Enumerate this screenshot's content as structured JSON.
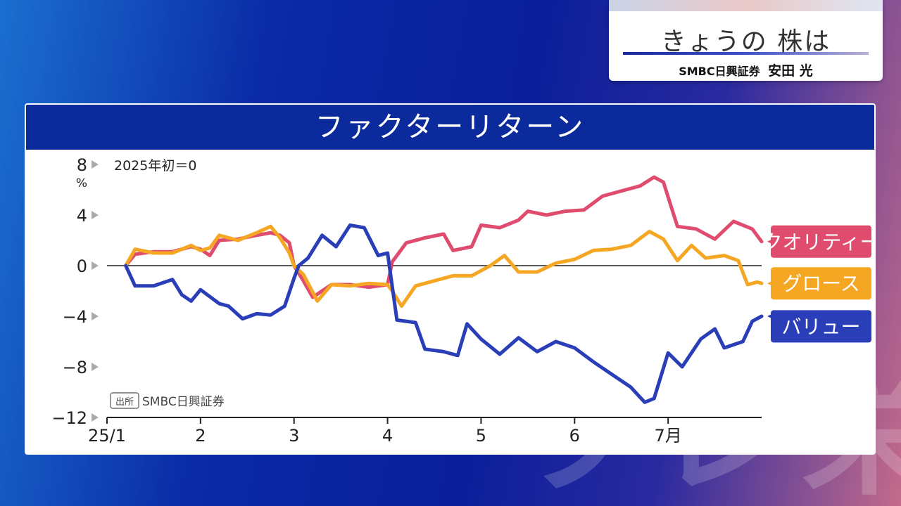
{
  "background": {
    "watermark_text": "ワレ栄"
  },
  "header": {
    "title": "きょうの 株は",
    "subtitle_org": "SMBC日興証券",
    "subtitle_person": "安田 光"
  },
  "colors": {
    "quality": "#e04c6e",
    "growth": "#f5a623",
    "value": "#2a3eb8",
    "panel_header": "#0b2a9c"
  },
  "chart_data": {
    "type": "line",
    "title": "ファクターリターン",
    "note": "2025年初＝0",
    "y_unit": "%",
    "source_badge": "出所",
    "source": "SMBC日興証券",
    "ylim": [
      -12,
      8
    ],
    "yticks": [
      {
        "value": 8,
        "label": "8"
      },
      {
        "value": 4,
        "label": "4"
      },
      {
        "value": 0,
        "label": "0"
      },
      {
        "value": -4,
        "label": "−4"
      },
      {
        "value": -8,
        "label": "−8"
      },
      {
        "value": -12,
        "label": "−12"
      }
    ],
    "xlim": [
      0,
      7
    ],
    "xticks": [
      {
        "value": 0,
        "label": "25/1"
      },
      {
        "value": 1,
        "label": "2"
      },
      {
        "value": 2,
        "label": "3"
      },
      {
        "value": 3,
        "label": "4"
      },
      {
        "value": 4,
        "label": "5"
      },
      {
        "value": 5,
        "label": "6"
      },
      {
        "value": 6,
        "label": "7月"
      }
    ],
    "series": [
      {
        "name": "クオリティー",
        "key": "quality",
        "points": [
          [
            0.2,
            0
          ],
          [
            0.3,
            0.9
          ],
          [
            0.5,
            1.1
          ],
          [
            0.7,
            1.1
          ],
          [
            0.9,
            1.5
          ],
          [
            1.0,
            1.3
          ],
          [
            1.1,
            0.8
          ],
          [
            1.2,
            2.0
          ],
          [
            1.4,
            2.1
          ],
          [
            1.6,
            2.4
          ],
          [
            1.75,
            2.6
          ],
          [
            1.85,
            2.4
          ],
          [
            1.95,
            1.8
          ],
          [
            2.0,
            0
          ],
          [
            2.1,
            -1.2
          ],
          [
            2.2,
            -2.5
          ],
          [
            2.4,
            -1.5
          ],
          [
            2.6,
            -1.5
          ],
          [
            2.8,
            -1.7
          ],
          [
            3.0,
            -1.5
          ],
          [
            3.05,
            0.3
          ],
          [
            3.2,
            1.8
          ],
          [
            3.4,
            2.2
          ],
          [
            3.6,
            2.5
          ],
          [
            3.7,
            1.2
          ],
          [
            3.9,
            1.5
          ],
          [
            4.0,
            3.2
          ],
          [
            4.2,
            3.0
          ],
          [
            4.4,
            3.6
          ],
          [
            4.5,
            4.3
          ],
          [
            4.7,
            4.0
          ],
          [
            4.9,
            4.3
          ],
          [
            5.1,
            4.4
          ],
          [
            5.3,
            5.5
          ],
          [
            5.5,
            5.9
          ],
          [
            5.7,
            6.3
          ],
          [
            5.85,
            7.0
          ],
          [
            5.95,
            6.6
          ],
          [
            6.1,
            3.1
          ],
          [
            6.3,
            2.9
          ],
          [
            6.5,
            2.1
          ],
          [
            6.7,
            3.5
          ],
          [
            6.9,
            2.9
          ],
          [
            7.0,
            1.9
          ]
        ]
      },
      {
        "name": "グロース",
        "key": "growth",
        "points": [
          [
            0.2,
            0
          ],
          [
            0.3,
            1.3
          ],
          [
            0.5,
            1.0
          ],
          [
            0.7,
            1.0
          ],
          [
            0.9,
            1.6
          ],
          [
            1.0,
            1.2
          ],
          [
            1.1,
            1.4
          ],
          [
            1.2,
            2.4
          ],
          [
            1.4,
            2.0
          ],
          [
            1.6,
            2.6
          ],
          [
            1.75,
            3.1
          ],
          [
            1.85,
            2.2
          ],
          [
            1.95,
            1.0
          ],
          [
            2.0,
            0
          ],
          [
            2.1,
            -0.7
          ],
          [
            2.25,
            -2.8
          ],
          [
            2.4,
            -1.5
          ],
          [
            2.6,
            -1.6
          ],
          [
            2.8,
            -1.4
          ],
          [
            3.0,
            -1.5
          ],
          [
            3.05,
            -2.0
          ],
          [
            3.15,
            -3.2
          ],
          [
            3.3,
            -1.6
          ],
          [
            3.5,
            -1.2
          ],
          [
            3.7,
            -0.8
          ],
          [
            3.9,
            -0.8
          ],
          [
            4.1,
            0
          ],
          [
            4.25,
            0.8
          ],
          [
            4.4,
            -0.5
          ],
          [
            4.6,
            -0.5
          ],
          [
            4.8,
            0.2
          ],
          [
            5.0,
            0.5
          ],
          [
            5.2,
            1.2
          ],
          [
            5.4,
            1.3
          ],
          [
            5.6,
            1.6
          ],
          [
            5.8,
            2.7
          ],
          [
            5.95,
            2.1
          ],
          [
            6.1,
            0.4
          ],
          [
            6.25,
            1.6
          ],
          [
            6.4,
            0.6
          ],
          [
            6.6,
            0.8
          ],
          [
            6.75,
            0.4
          ],
          [
            6.85,
            -1.5
          ],
          [
            6.95,
            -1.3
          ],
          [
            7.0,
            -1.4
          ]
        ]
      },
      {
        "name": "バリュー",
        "key": "value",
        "points": [
          [
            0.2,
            0
          ],
          [
            0.3,
            -1.6
          ],
          [
            0.5,
            -1.6
          ],
          [
            0.7,
            -1.1
          ],
          [
            0.8,
            -2.3
          ],
          [
            0.9,
            -2.8
          ],
          [
            1.0,
            -1.9
          ],
          [
            1.2,
            -3.0
          ],
          [
            1.3,
            -3.2
          ],
          [
            1.45,
            -4.2
          ],
          [
            1.6,
            -3.8
          ],
          [
            1.75,
            -3.9
          ],
          [
            1.9,
            -3.2
          ],
          [
            2.0,
            -1.0
          ],
          [
            2.05,
            0
          ],
          [
            2.15,
            0.6
          ],
          [
            2.3,
            2.4
          ],
          [
            2.45,
            1.5
          ],
          [
            2.6,
            3.2
          ],
          [
            2.75,
            3.0
          ],
          [
            2.9,
            0.8
          ],
          [
            3.0,
            1.0
          ],
          [
            3.1,
            -4.3
          ],
          [
            3.3,
            -4.5
          ],
          [
            3.4,
            -6.6
          ],
          [
            3.6,
            -6.8
          ],
          [
            3.75,
            -7.1
          ],
          [
            3.85,
            -4.6
          ],
          [
            4.0,
            -5.8
          ],
          [
            4.2,
            -7.0
          ],
          [
            4.4,
            -5.7
          ],
          [
            4.6,
            -6.8
          ],
          [
            4.8,
            -6.0
          ],
          [
            5.0,
            -6.5
          ],
          [
            5.2,
            -7.6
          ],
          [
            5.4,
            -8.6
          ],
          [
            5.6,
            -9.6
          ],
          [
            5.75,
            -10.8
          ],
          [
            5.85,
            -10.5
          ],
          [
            6.0,
            -6.9
          ],
          [
            6.15,
            -8.0
          ],
          [
            6.35,
            -5.8
          ],
          [
            6.5,
            -5.0
          ],
          [
            6.6,
            -6.5
          ],
          [
            6.8,
            -6.0
          ],
          [
            6.9,
            -4.4
          ],
          [
            7.0,
            -4.0
          ]
        ]
      }
    ]
  }
}
